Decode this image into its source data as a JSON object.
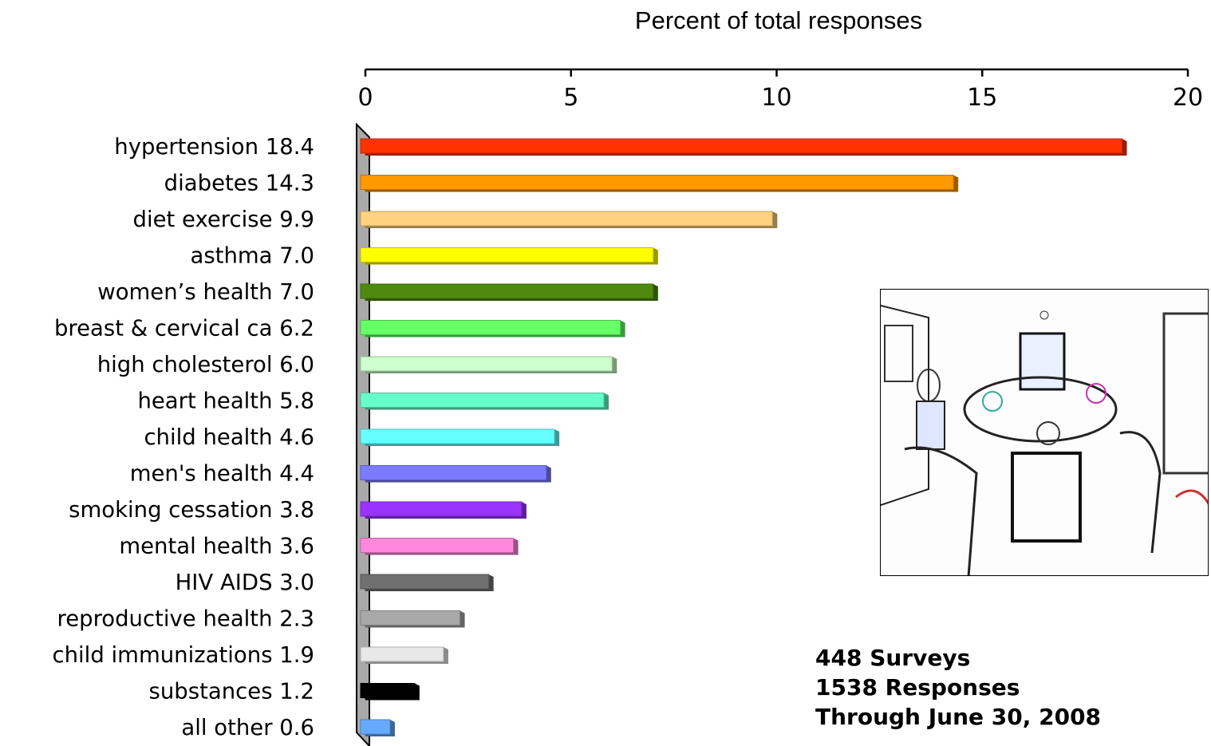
{
  "chart_data": {
    "type": "bar",
    "orientation": "horizontal",
    "xlabel": "Percent of total responses",
    "xlim": [
      0,
      20
    ],
    "x_ticks": [
      "0",
      "5",
      "10",
      "15",
      "20"
    ],
    "categories": [
      "hypertension 18.4",
      "diabetes 14.3",
      "diet exercise 9.9",
      "asthma  7.0",
      "women’s health 7.0",
      "breast & cervical ca 6.2",
      "high cholesterol 6.0",
      "heart health 5.8",
      "child health 4.6",
      "men's health 4.4",
      "smoking cessation 3.8",
      "mental health 3.6",
      "HIV AIDS 3.0",
      "reproductive health 2.3",
      "child immunizations 1.9",
      "substances 1.2",
      "all other 0.6"
    ],
    "values": [
      18.4,
      14.3,
      9.9,
      7.0,
      7.0,
      6.2,
      6.0,
      5.8,
      4.6,
      4.4,
      3.8,
      3.6,
      3.0,
      2.3,
      1.9,
      1.2,
      0.6
    ],
    "colors": [
      "#ff3300",
      "#ff9900",
      "#ffd27f",
      "#ffff00",
      "#4f8a10",
      "#66ff66",
      "#ccffcc",
      "#66ffcc",
      "#66ffff",
      "#7b7bff",
      "#9933ff",
      "#ff88dd",
      "#707070",
      "#a8a8a8",
      "#e8e8e8",
      "#000000",
      "#66aaff"
    ]
  },
  "stats": {
    "surveys": "448 Surveys",
    "responses": "1538 Responses",
    "through": "Through June 30, 2008"
  },
  "photo": {
    "icon": "meeting-room-photo"
  }
}
